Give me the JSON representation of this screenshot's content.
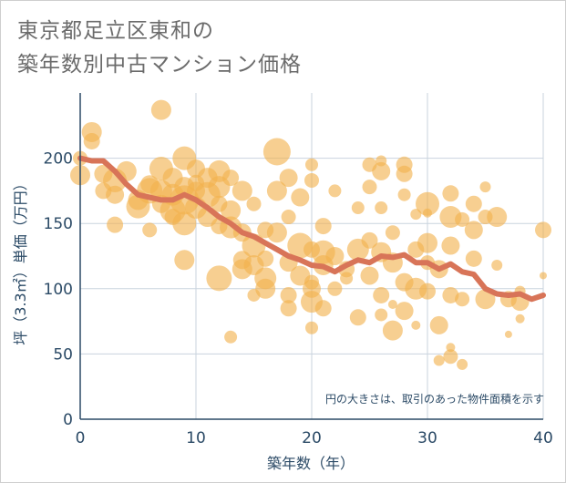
{
  "chart_data": {
    "type": "scatter",
    "title_lines": [
      "東京都足立区東和の",
      "築年数別中古マンション価格"
    ],
    "xlabel": "築年数（年）",
    "ylabel": "坪（3.3㎡）単価（万円）",
    "xlim": [
      0,
      40
    ],
    "ylim": [
      0,
      250
    ],
    "xticks": [
      0,
      10,
      20,
      30,
      40
    ],
    "yticks": [
      0,
      50,
      100,
      150,
      200
    ],
    "grid": true,
    "note": "円の大きさは、取引のあった物件面積を示す",
    "colors": {
      "bubble": "#f2b14e",
      "trend": "#d87458",
      "grid": "#c9d3de",
      "text": "#2b4a66"
    },
    "series": [
      {
        "kind": "bubbles",
        "points": [
          [
            0,
            187,
            11
          ],
          [
            0,
            200,
            8
          ],
          [
            1,
            220,
            11
          ],
          [
            1,
            213,
            9
          ],
          [
            2,
            175,
            9
          ],
          [
            2,
            188,
            10
          ],
          [
            3,
            172,
            10
          ],
          [
            3,
            183,
            13
          ],
          [
            3,
            149,
            9
          ],
          [
            4,
            190,
            11
          ],
          [
            5,
            163,
            13
          ],
          [
            5,
            168,
            11
          ],
          [
            6,
            145,
            8
          ],
          [
            6,
            175,
            14
          ],
          [
            6,
            180,
            10
          ],
          [
            7,
            237,
            11
          ],
          [
            7,
            192,
            13
          ],
          [
            7,
            165,
            10
          ],
          [
            7,
            175,
            12
          ],
          [
            8,
            172,
            12
          ],
          [
            8,
            160,
            14
          ],
          [
            8,
            155,
            9
          ],
          [
            8,
            185,
            11
          ],
          [
            9,
            150,
            13
          ],
          [
            9,
            168,
            16
          ],
          [
            9,
            200,
            13
          ],
          [
            9,
            178,
            11
          ],
          [
            9,
            122,
            11
          ],
          [
            10,
            175,
            10
          ],
          [
            10,
            162,
            12
          ],
          [
            10,
            181,
            9
          ],
          [
            10,
            192,
            10
          ],
          [
            11,
            172,
            14
          ],
          [
            11,
            155,
            11
          ],
          [
            11,
            185,
            11
          ],
          [
            12,
            108,
            14
          ],
          [
            12,
            178,
            12
          ],
          [
            12,
            190,
            12
          ],
          [
            12,
            165,
            9
          ],
          [
            12,
            148,
            9
          ],
          [
            13,
            63,
            7
          ],
          [
            13,
            160,
            11
          ],
          [
            13,
            147,
            12
          ],
          [
            13,
            185,
            9
          ],
          [
            14,
            115,
            11
          ],
          [
            14,
            122,
            10
          ],
          [
            14,
            175,
            11
          ],
          [
            14,
            143,
            10
          ],
          [
            15,
            95,
            7
          ],
          [
            15,
            133,
            13
          ],
          [
            15,
            118,
            11
          ],
          [
            15,
            165,
            8
          ],
          [
            16,
            108,
            12
          ],
          [
            16,
            100,
            11
          ],
          [
            16,
            123,
            9
          ],
          [
            16,
            145,
            9
          ],
          [
            17,
            205,
            15
          ],
          [
            17,
            175,
            11
          ],
          [
            17,
            143,
            11
          ],
          [
            18,
            120,
            10
          ],
          [
            18,
            95,
            9
          ],
          [
            18,
            85,
            9
          ],
          [
            18,
            155,
            8
          ],
          [
            18,
            185,
            10
          ],
          [
            19,
            133,
            14
          ],
          [
            19,
            110,
            11
          ],
          [
            19,
            170,
            10
          ],
          [
            20,
            90,
            12
          ],
          [
            20,
            130,
            9
          ],
          [
            20,
            100,
            10
          ],
          [
            20,
            105,
            8
          ],
          [
            20,
            195,
            7
          ],
          [
            20,
            183,
            8
          ],
          [
            20,
            70,
            7
          ],
          [
            21,
            128,
            13
          ],
          [
            21,
            118,
            11
          ],
          [
            21,
            85,
            9
          ],
          [
            21,
            148,
            9
          ],
          [
            22,
            125,
            10
          ],
          [
            22,
            100,
            8
          ],
          [
            22,
            175,
            7
          ],
          [
            23,
            115,
            9
          ],
          [
            23,
            108,
            7
          ],
          [
            24,
            130,
            12
          ],
          [
            24,
            78,
            9
          ],
          [
            24,
            162,
            7
          ],
          [
            25,
            110,
            10
          ],
          [
            25,
            137,
            9
          ],
          [
            25,
            178,
            8
          ],
          [
            25,
            195,
            8
          ],
          [
            26,
            128,
            11
          ],
          [
            26,
            95,
            9
          ],
          [
            26,
            80,
            7
          ],
          [
            26,
            162,
            7
          ],
          [
            26,
            190,
            10
          ],
          [
            26,
            198,
            6
          ],
          [
            27,
            68,
            11
          ],
          [
            27,
            120,
            11
          ],
          [
            27,
            143,
            8
          ],
          [
            27,
            88,
            5
          ],
          [
            28,
            105,
            10
          ],
          [
            28,
            83,
            10
          ],
          [
            28,
            172,
            7
          ],
          [
            28,
            188,
            9
          ],
          [
            28,
            195,
            9
          ],
          [
            29,
            130,
            9
          ],
          [
            29,
            100,
            12
          ],
          [
            29,
            72,
            5
          ],
          [
            29,
            157,
            6
          ],
          [
            30,
            135,
            11
          ],
          [
            30,
            165,
            13
          ],
          [
            30,
            158,
            5
          ],
          [
            30,
            120,
            8
          ],
          [
            30,
            98,
            9
          ],
          [
            31,
            115,
            10
          ],
          [
            31,
            72,
            10
          ],
          [
            31,
            45,
            6
          ],
          [
            32,
            155,
            12
          ],
          [
            32,
            173,
            9
          ],
          [
            32,
            133,
            10
          ],
          [
            32,
            95,
            9
          ],
          [
            32,
            48,
            8
          ],
          [
            32,
            55,
            5
          ],
          [
            33,
            92,
            8
          ],
          [
            33,
            42,
            6
          ],
          [
            33,
            153,
            8
          ],
          [
            34,
            165,
            9
          ],
          [
            34,
            145,
            10
          ],
          [
            34,
            123,
            9
          ],
          [
            35,
            92,
            11
          ],
          [
            35,
            178,
            6
          ],
          [
            35,
            155,
            8
          ],
          [
            36,
            155,
            11
          ],
          [
            36,
            118,
            6
          ],
          [
            37,
            92,
            9
          ],
          [
            37,
            65,
            4
          ],
          [
            38,
            90,
            10
          ],
          [
            38,
            77,
            5
          ],
          [
            38,
            98,
            6
          ],
          [
            40,
            145,
            9
          ],
          [
            40,
            110,
            4
          ]
        ]
      },
      {
        "kind": "line",
        "name": "",
        "points": [
          [
            0,
            200
          ],
          [
            1,
            198
          ],
          [
            2,
            198
          ],
          [
            3,
            190
          ],
          [
            4,
            180
          ],
          [
            5,
            172
          ],
          [
            6,
            170
          ],
          [
            7,
            168
          ],
          [
            8,
            168
          ],
          [
            9,
            172
          ],
          [
            10,
            168
          ],
          [
            11,
            162
          ],
          [
            12,
            155
          ],
          [
            13,
            150
          ],
          [
            14,
            143
          ],
          [
            15,
            140
          ],
          [
            16,
            135
          ],
          [
            17,
            130
          ],
          [
            18,
            125
          ],
          [
            19,
            122
          ],
          [
            20,
            118
          ],
          [
            21,
            117
          ],
          [
            22,
            113
          ],
          [
            23,
            118
          ],
          [
            24,
            122
          ],
          [
            25,
            120
          ],
          [
            26,
            125
          ],
          [
            27,
            124
          ],
          [
            28,
            126
          ],
          [
            29,
            120
          ],
          [
            30,
            120
          ],
          [
            31,
            115
          ],
          [
            32,
            119
          ],
          [
            33,
            113
          ],
          [
            34,
            111
          ],
          [
            35,
            100
          ],
          [
            36,
            96
          ],
          [
            37,
            95
          ],
          [
            38,
            96
          ],
          [
            39,
            92
          ],
          [
            40,
            95
          ]
        ]
      }
    ]
  }
}
